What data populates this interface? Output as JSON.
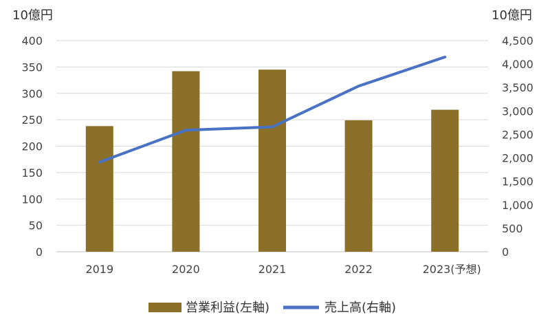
{
  "chart_data": {
    "type": "bar+line",
    "categories": [
      "2019",
      "2020",
      "2021",
      "2022",
      "2023(予想)"
    ],
    "series": [
      {
        "name": "営業利益(左軸)",
        "type": "bar",
        "axis": "left",
        "color": "#8C7027",
        "values": [
          238,
          342,
          345,
          249,
          269
        ]
      },
      {
        "name": "売上高(右軸)",
        "type": "line",
        "axis": "right",
        "color": "#4A72C4",
        "values": [
          1910,
          2590,
          2660,
          3530,
          4150
        ]
      }
    ],
    "y_left": {
      "unit": "10億円",
      "ylim": [
        0,
        400
      ],
      "ticks": [
        "0",
        "50",
        "100",
        "150",
        "200",
        "250",
        "300",
        "350",
        "400"
      ]
    },
    "y_right": {
      "unit": "10億円",
      "ylim": [
        0,
        4500
      ],
      "ticks": [
        "0",
        "500",
        "1,000",
        "1,500",
        "2,000",
        "2,500",
        "3,000",
        "3,500",
        "4,000",
        "4,500"
      ]
    },
    "grid": true,
    "legend_position": "bottom"
  }
}
